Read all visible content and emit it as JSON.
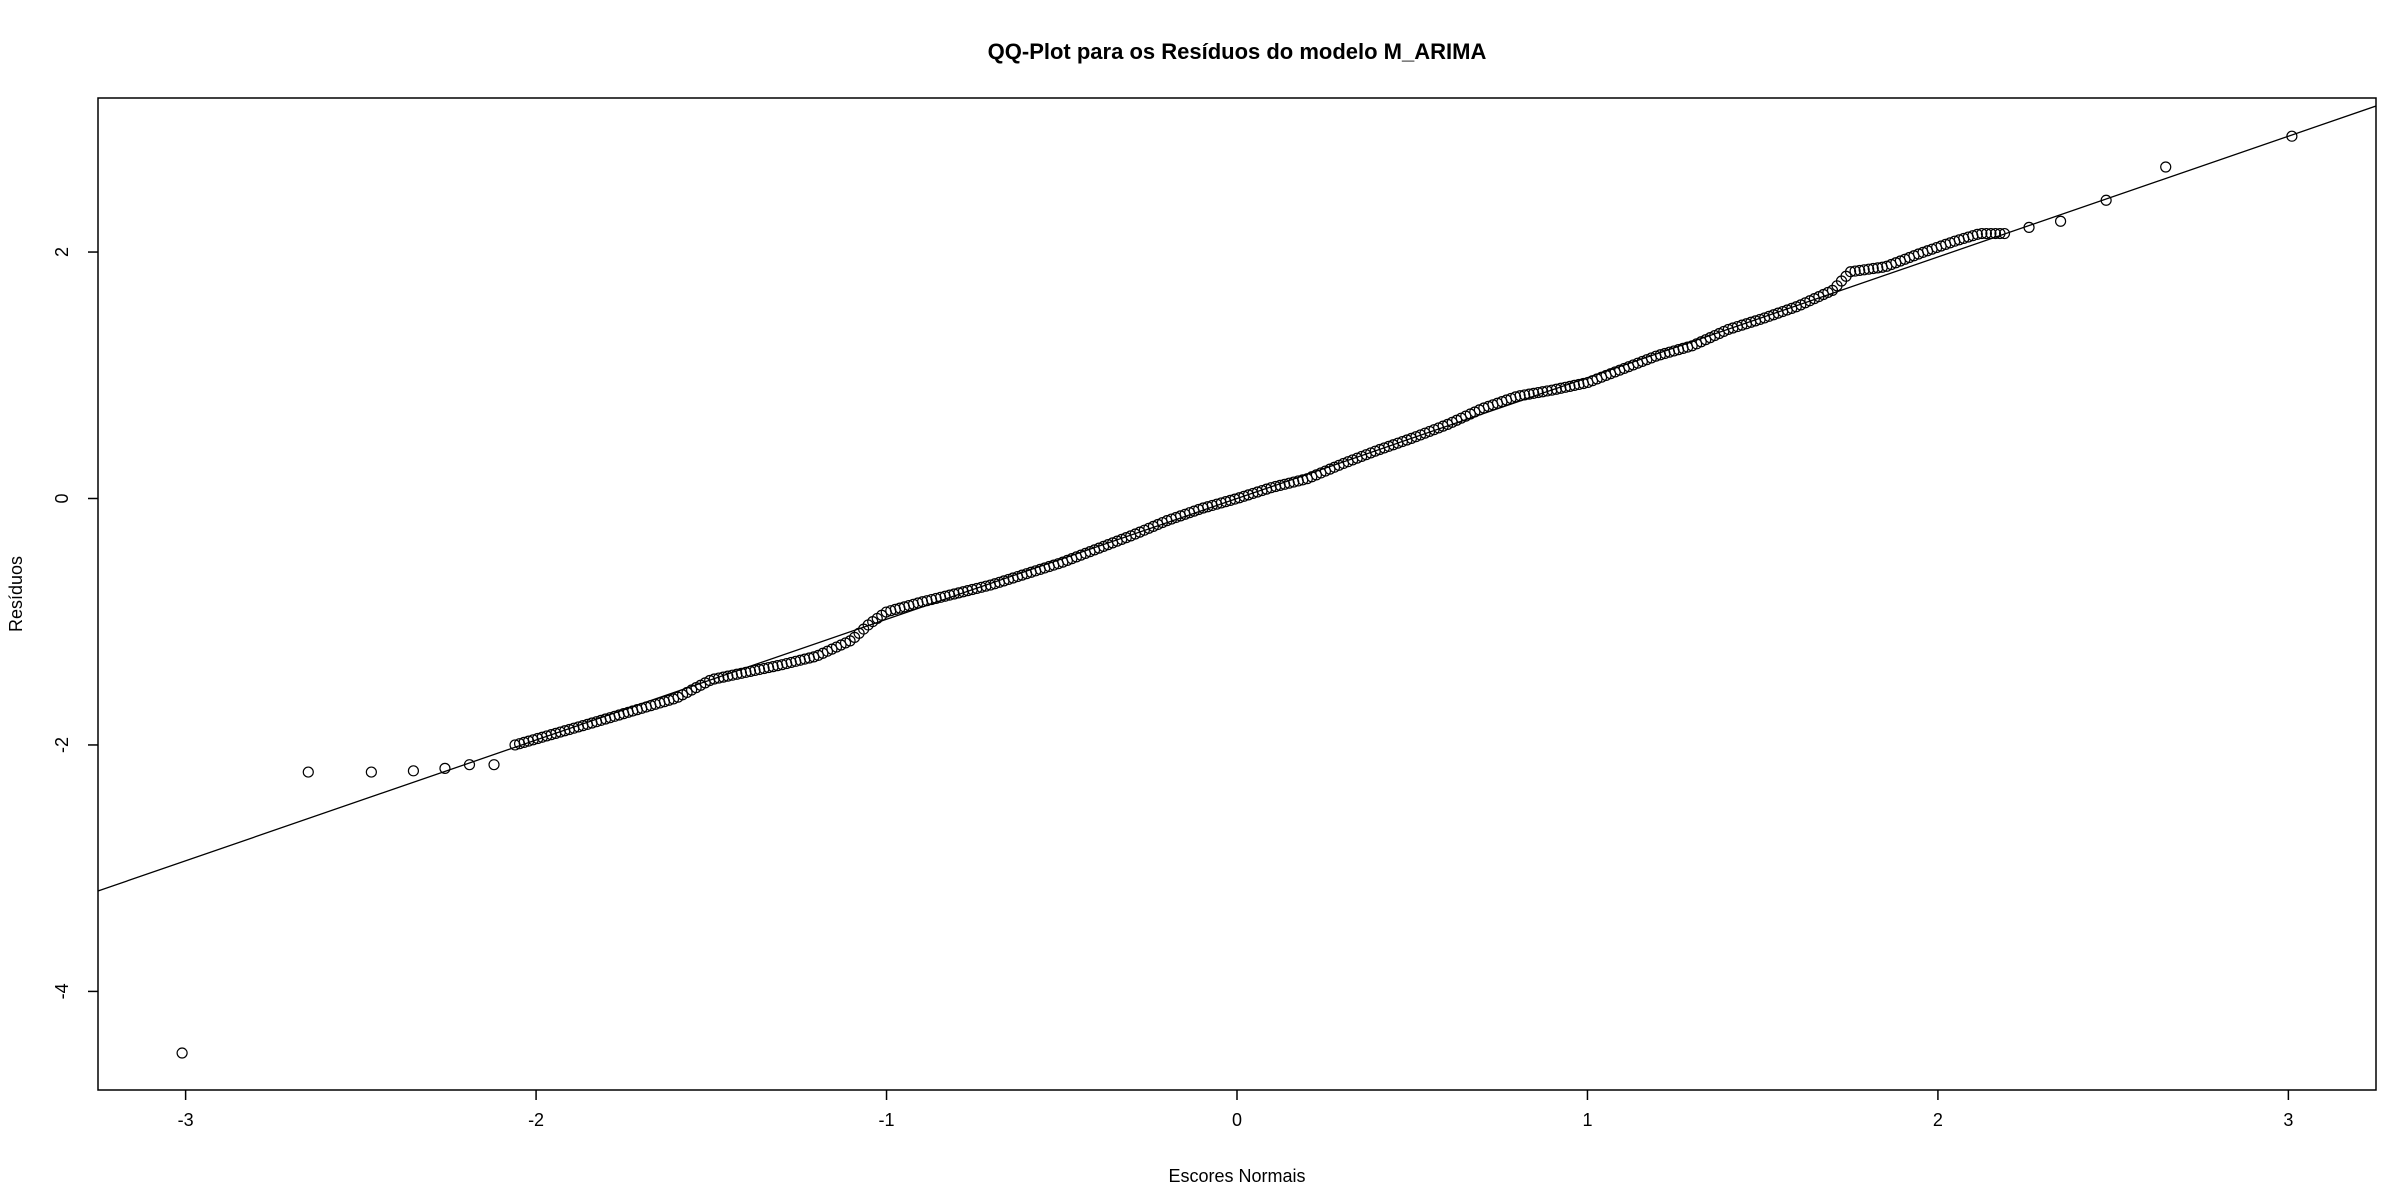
{
  "chart_data": {
    "type": "scatter",
    "title": "QQ-Plot para os Resíduos do modelo M_ARIMA",
    "xlabel": "Escores Normais",
    "ylabel": "Resíduos",
    "xlim": [
      -3.25,
      3.25
    ],
    "ylim": [
      -4.8,
      3.25
    ],
    "x_ticks": [
      -3,
      -2,
      -1,
      0,
      1,
      2,
      3
    ],
    "y_ticks": [
      -4,
      -2,
      0,
      2
    ],
    "grid": false,
    "reference_line": {
      "intercept": 0.0,
      "slope": 0.98
    },
    "outlier_points": [
      {
        "x": -3.01,
        "y": -4.5
      },
      {
        "x": -2.65,
        "y": -2.22
      },
      {
        "x": -2.47,
        "y": -2.22
      },
      {
        "x": -2.35,
        "y": -2.21
      },
      {
        "x": -2.26,
        "y": -2.19
      },
      {
        "x": -2.19,
        "y": -2.16
      },
      {
        "x": -2.12,
        "y": -2.16
      },
      {
        "x": 2.26,
        "y": 2.2
      },
      {
        "x": 2.35,
        "y": 2.25
      },
      {
        "x": 2.48,
        "y": 2.42
      },
      {
        "x": 2.65,
        "y": 2.69
      },
      {
        "x": 3.01,
        "y": 2.94
      }
    ],
    "sample_curve": [
      {
        "x": -2.06,
        "y": -2.0
      },
      {
        "x": -1.85,
        "y": -1.83
      },
      {
        "x": -1.6,
        "y": -1.62
      },
      {
        "x": -1.5,
        "y": -1.47
      },
      {
        "x": -1.4,
        "y": -1.41
      },
      {
        "x": -1.3,
        "y": -1.35
      },
      {
        "x": -1.2,
        "y": -1.28
      },
      {
        "x": -1.1,
        "y": -1.15
      },
      {
        "x": -1.05,
        "y": -1.02
      },
      {
        "x": -1.0,
        "y": -0.92
      },
      {
        "x": -0.9,
        "y": -0.84
      },
      {
        "x": -0.8,
        "y": -0.77
      },
      {
        "x": -0.7,
        "y": -0.7
      },
      {
        "x": -0.6,
        "y": -0.61
      },
      {
        "x": -0.5,
        "y": -0.52
      },
      {
        "x": -0.4,
        "y": -0.41
      },
      {
        "x": -0.3,
        "y": -0.3
      },
      {
        "x": -0.2,
        "y": -0.18
      },
      {
        "x": -0.1,
        "y": -0.08
      },
      {
        "x": 0.0,
        "y": 0.0
      },
      {
        "x": 0.1,
        "y": 0.09
      },
      {
        "x": 0.2,
        "y": 0.16
      },
      {
        "x": 0.3,
        "y": 0.28
      },
      {
        "x": 0.4,
        "y": 0.39
      },
      {
        "x": 0.5,
        "y": 0.49
      },
      {
        "x": 0.6,
        "y": 0.6
      },
      {
        "x": 0.7,
        "y": 0.73
      },
      {
        "x": 0.8,
        "y": 0.83
      },
      {
        "x": 0.9,
        "y": 0.88
      },
      {
        "x": 1.0,
        "y": 0.94
      },
      {
        "x": 1.1,
        "y": 1.05
      },
      {
        "x": 1.2,
        "y": 1.16
      },
      {
        "x": 1.3,
        "y": 1.24
      },
      {
        "x": 1.4,
        "y": 1.37
      },
      {
        "x": 1.5,
        "y": 1.46
      },
      {
        "x": 1.6,
        "y": 1.56
      },
      {
        "x": 1.7,
        "y": 1.69
      },
      {
        "x": 1.75,
        "y": 1.84
      },
      {
        "x": 1.85,
        "y": 1.88
      },
      {
        "x": 1.95,
        "y": 1.99
      },
      {
        "x": 2.05,
        "y": 2.09
      },
      {
        "x": 2.12,
        "y": 2.15
      },
      {
        "x": 2.19,
        "y": 2.15
      }
    ],
    "sample_count": 330
  }
}
